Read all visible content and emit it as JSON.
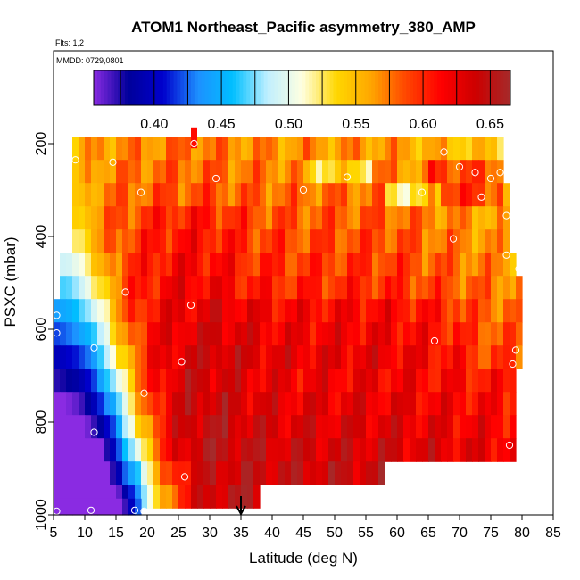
{
  "chart_data": {
    "type": "heatmap",
    "title": "ATOM1 Northeast_Pacific asymmetry_380_AMP",
    "flights_label": "Flts: 1,2",
    "dates_label": "MMDD: 0729,0801",
    "xlabel": "Latitude (deg N)",
    "ylabel": "PSXC (mbar)",
    "xlim": [
      5,
      85
    ],
    "ylim": [
      1000,
      0
    ],
    "x_ticks": [
      5,
      10,
      15,
      20,
      25,
      30,
      35,
      40,
      45,
      50,
      55,
      60,
      65,
      70,
      75,
      80,
      85
    ],
    "x_tick_labels": [
      "5",
      "10",
      "15",
      "20",
      "25",
      "30",
      "35",
      "40",
      "45",
      "50",
      "55",
      "60",
      "65",
      "70",
      "75",
      "80",
      "85"
    ],
    "y_ticks": [
      200,
      400,
      600,
      800,
      1000
    ],
    "y_tick_labels": [
      "200",
      "400",
      "600",
      "800",
      "1000"
    ],
    "colorbar": {
      "min": 0.355,
      "max": 0.665,
      "ticks": [
        0.4,
        0.45,
        0.5,
        0.55,
        0.6,
        0.65
      ],
      "tick_labels": [
        "0.40",
        "0.45",
        "0.50",
        "0.55",
        "0.60",
        "0.65"
      ],
      "colors": [
        "#8a2be2",
        "#00009a",
        "#0000cd",
        "#1e90ff",
        "#00bfff",
        "#bfefff",
        "#ffffe0",
        "#ffd700",
        "#ffa500",
        "#ff4500",
        "#ff0000",
        "#cd0000",
        "#a52a2a"
      ]
    },
    "marker_latitude": 35,
    "pressure_levels": [
      210,
      260,
      310,
      360,
      410,
      460,
      510,
      560,
      610,
      660,
      710,
      760,
      810,
      860,
      910,
      960,
      990
    ],
    "bands": [
      {
        "p": 210,
        "x0": 8,
        "x1": 77
      },
      {
        "p": 260,
        "x0": 8,
        "x1": 77
      },
      {
        "p": 310,
        "x0": 8,
        "x1": 78
      },
      {
        "p": 360,
        "x0": 8,
        "x1": 78
      },
      {
        "p": 410,
        "x0": 8,
        "x1": 78
      },
      {
        "p": 460,
        "x0": 6,
        "x1": 79
      },
      {
        "p": 510,
        "x0": 6,
        "x1": 80
      },
      {
        "p": 560,
        "x0": 5,
        "x1": 80
      },
      {
        "p": 610,
        "x0": 5,
        "x1": 80
      },
      {
        "p": 660,
        "x0": 5,
        "x1": 80
      },
      {
        "p": 710,
        "x0": 5,
        "x1": 79
      },
      {
        "p": 760,
        "x0": 5,
        "x1": 79
      },
      {
        "p": 810,
        "x0": 5,
        "x1": 79
      },
      {
        "p": 860,
        "x0": 5,
        "x1": 79
      },
      {
        "p": 910,
        "x0": 5,
        "x1": 58
      },
      {
        "p": 960,
        "x0": 5,
        "x1": 38
      },
      {
        "p": 990,
        "x0": 5,
        "x1": 19
      }
    ],
    "isolated_cell": {
      "x0": 27,
      "x1": 28,
      "p0": 165,
      "p1": 210,
      "value": 0.61
    },
    "points": [
      {
        "lat": 8.5,
        "p": 235
      },
      {
        "lat": 14.5,
        "p": 240
      },
      {
        "lat": 19.0,
        "p": 305
      },
      {
        "lat": 27.5,
        "p": 200
      },
      {
        "lat": 31.0,
        "p": 275
      },
      {
        "lat": 45.0,
        "p": 300
      },
      {
        "lat": 52.0,
        "p": 272
      },
      {
        "lat": 64.0,
        "p": 305
      },
      {
        "lat": 67.5,
        "p": 218
      },
      {
        "lat": 70.0,
        "p": 250
      },
      {
        "lat": 72.5,
        "p": 262
      },
      {
        "lat": 73.5,
        "p": 315
      },
      {
        "lat": 75.0,
        "p": 275
      },
      {
        "lat": 76.5,
        "p": 262
      },
      {
        "lat": 77.5,
        "p": 355
      },
      {
        "lat": 69.0,
        "p": 405
      },
      {
        "lat": 77.5,
        "p": 440
      },
      {
        "lat": 79.5,
        "p": 470
      },
      {
        "lat": 16.5,
        "p": 520
      },
      {
        "lat": 27.0,
        "p": 548
      },
      {
        "lat": 5.5,
        "p": 570
      },
      {
        "lat": 5.5,
        "p": 608
      },
      {
        "lat": 11.5,
        "p": 640
      },
      {
        "lat": 66.0,
        "p": 625
      },
      {
        "lat": 79.0,
        "p": 645
      },
      {
        "lat": 25.5,
        "p": 670
      },
      {
        "lat": 78.5,
        "p": 675
      },
      {
        "lat": 19.5,
        "p": 738
      },
      {
        "lat": 11.5,
        "p": 822
      },
      {
        "lat": 78.0,
        "p": 850
      },
      {
        "lat": 26.0,
        "p": 918
      },
      {
        "lat": 5.5,
        "p": 992
      },
      {
        "lat": 11.0,
        "p": 990
      },
      {
        "lat": 18.0,
        "p": 990
      },
      {
        "lat": 19.5,
        "p": 992
      }
    ]
  }
}
